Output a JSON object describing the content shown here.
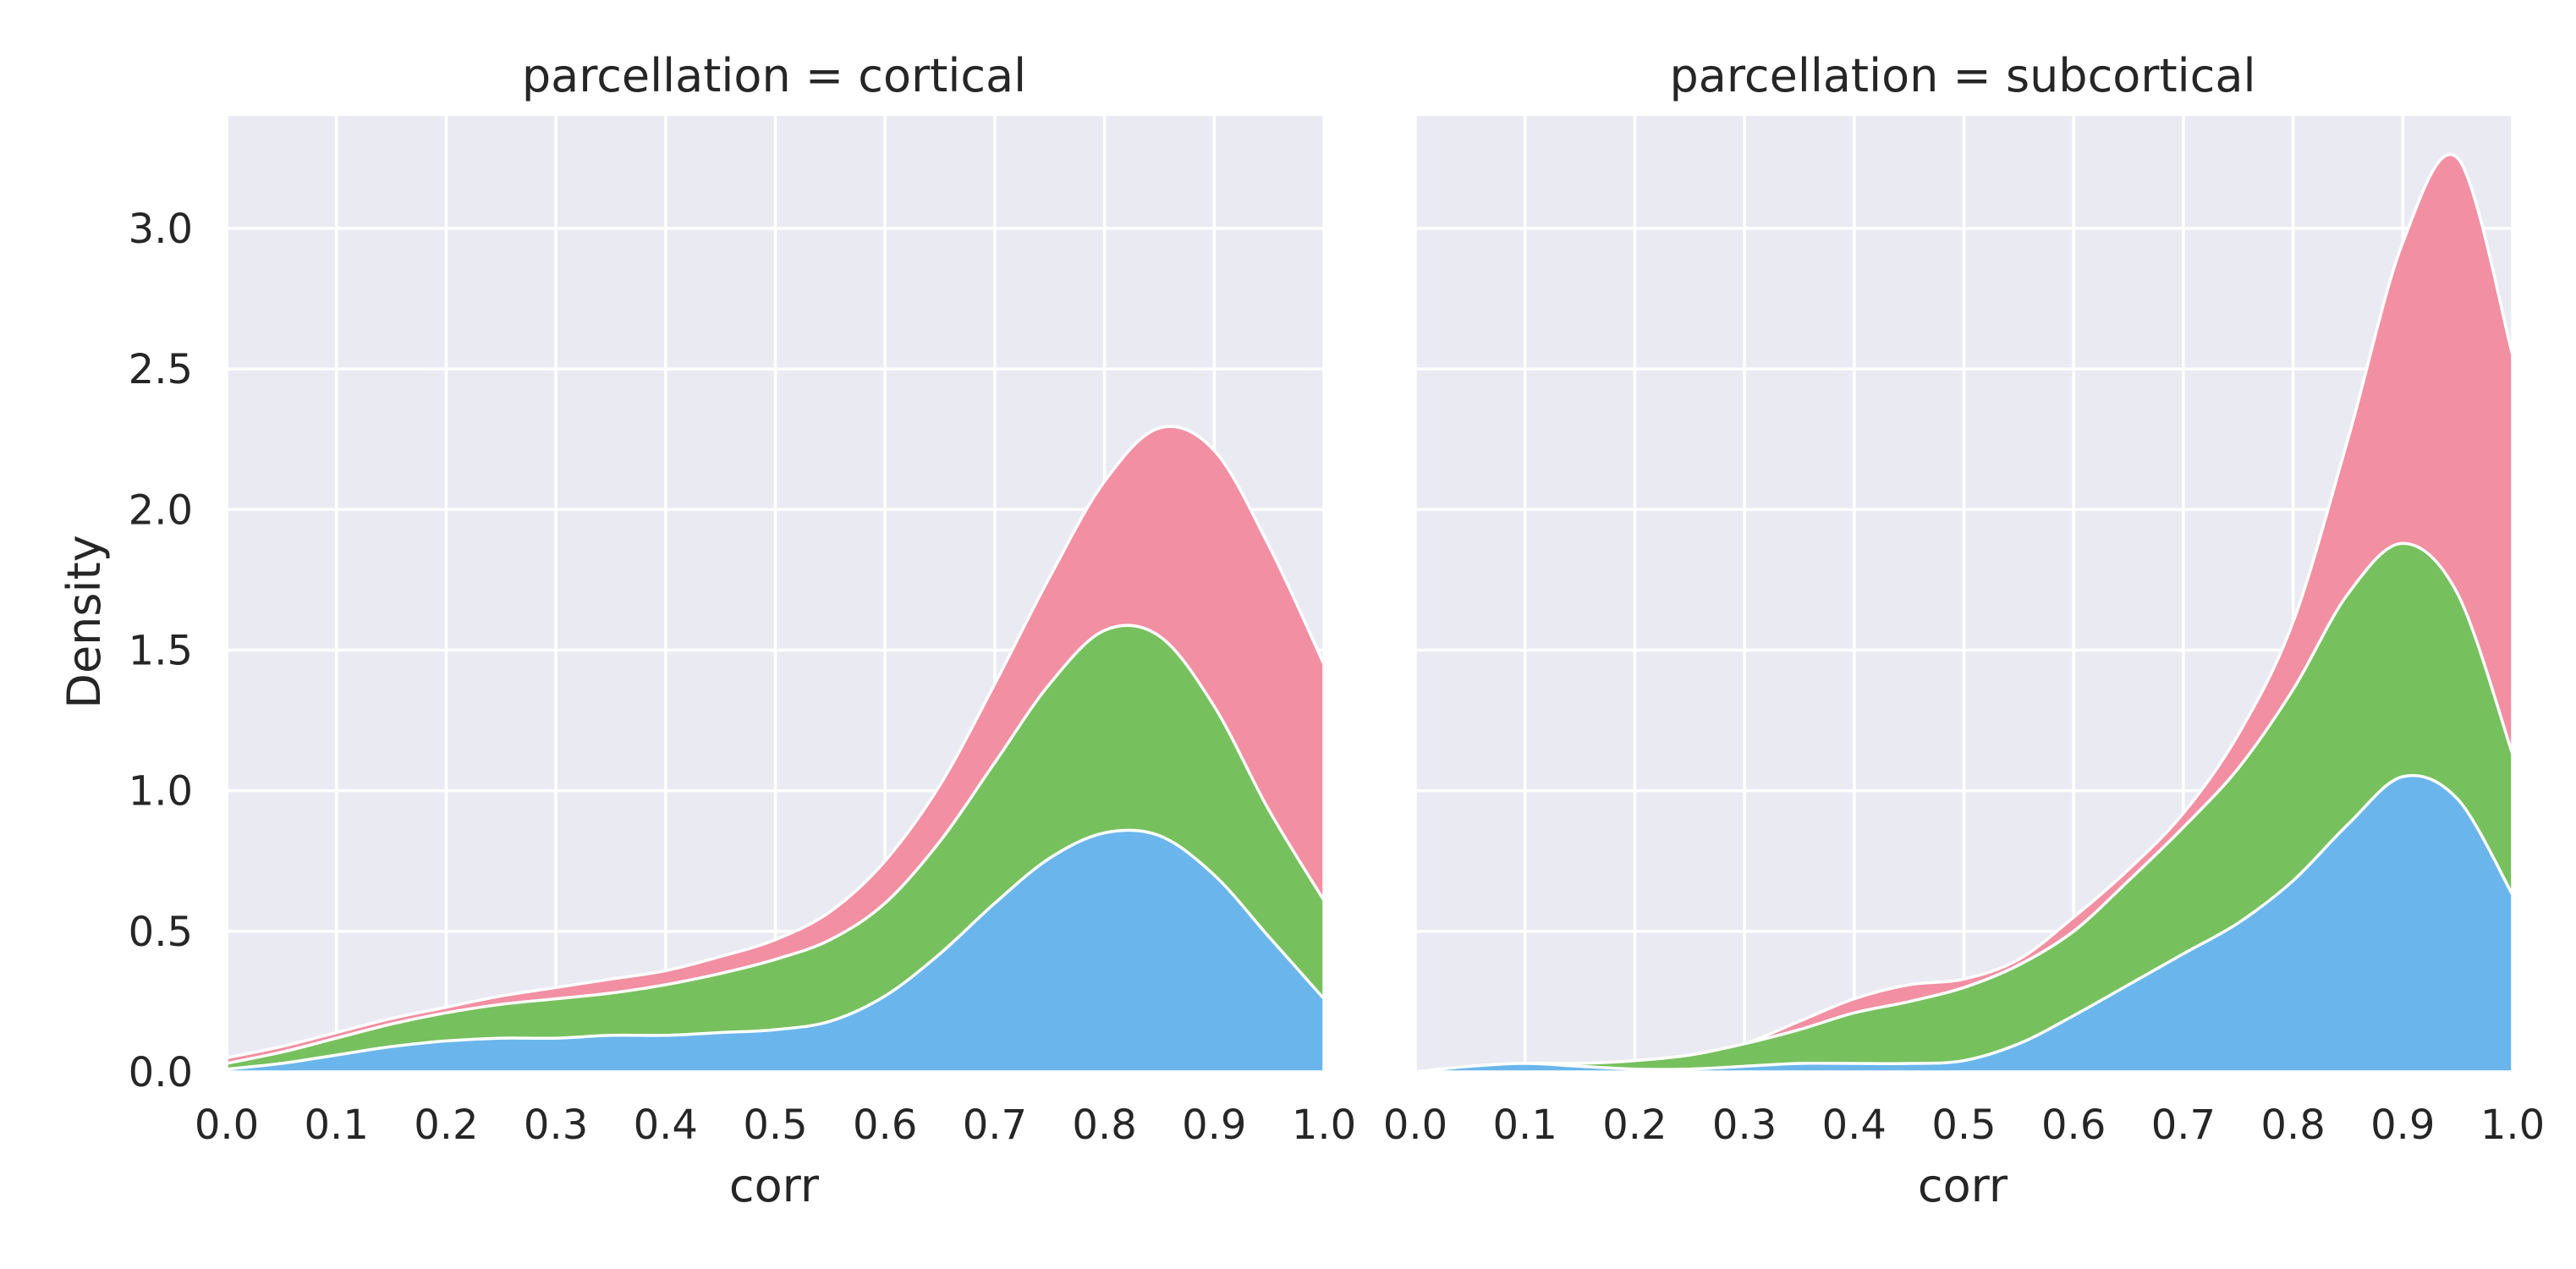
{
  "chart_data": {
    "type": "area",
    "stacked": true,
    "grid": true,
    "colors": {
      "panel_background": "#eaeaf2",
      "grid": "#ffffff",
      "series_bottom": "#6ab6ec",
      "series_middle": "#77c05e",
      "series_top": "#f28fa3"
    },
    "ylabel": "Density",
    "xlim": [
      0.0,
      1.0
    ],
    "ylim": [
      0.0,
      3.4
    ],
    "x_ticks": [
      "0.0",
      "0.1",
      "0.2",
      "0.3",
      "0.4",
      "0.5",
      "0.6",
      "0.7",
      "0.8",
      "0.9",
      "1.0"
    ],
    "y_ticks": [
      "0.0",
      "0.5",
      "1.0",
      "1.5",
      "2.0",
      "2.5",
      "3.0"
    ],
    "facets": [
      {
        "title": "parcellation = cortical",
        "xlabel": "corr",
        "x": [
          0.0,
          0.05,
          0.1,
          0.15,
          0.2,
          0.25,
          0.3,
          0.35,
          0.4,
          0.45,
          0.5,
          0.55,
          0.6,
          0.65,
          0.7,
          0.75,
          0.8,
          0.85,
          0.9,
          0.95,
          1.0
        ],
        "series": [
          {
            "color": "#6ab6ec",
            "cumulative": [
              0.01,
              0.03,
              0.06,
              0.09,
              0.11,
              0.12,
              0.12,
              0.13,
              0.13,
              0.14,
              0.15,
              0.18,
              0.27,
              0.42,
              0.6,
              0.76,
              0.85,
              0.84,
              0.7,
              0.48,
              0.26
            ]
          },
          {
            "color": "#77c05e",
            "cumulative": [
              0.03,
              0.07,
              0.12,
              0.17,
              0.21,
              0.24,
              0.26,
              0.28,
              0.31,
              0.35,
              0.4,
              0.47,
              0.6,
              0.82,
              1.1,
              1.38,
              1.57,
              1.55,
              1.3,
              0.93,
              0.61
            ]
          },
          {
            "color": "#f28fa3",
            "cumulative": [
              0.05,
              0.09,
              0.14,
              0.19,
              0.23,
              0.27,
              0.3,
              0.33,
              0.36,
              0.41,
              0.47,
              0.57,
              0.75,
              1.02,
              1.38,
              1.76,
              2.1,
              2.29,
              2.21,
              1.87,
              1.45
            ]
          }
        ]
      },
      {
        "title": "parcellation = subcortical",
        "xlabel": "corr",
        "x": [
          0.0,
          0.05,
          0.1,
          0.15,
          0.2,
          0.25,
          0.3,
          0.35,
          0.4,
          0.45,
          0.5,
          0.55,
          0.6,
          0.65,
          0.7,
          0.75,
          0.8,
          0.85,
          0.9,
          0.95,
          1.0
        ],
        "series": [
          {
            "color": "#6ab6ec",
            "cumulative": [
              0.0,
              0.02,
              0.03,
              0.02,
              0.01,
              0.01,
              0.02,
              0.03,
              0.03,
              0.03,
              0.04,
              0.1,
              0.2,
              0.31,
              0.42,
              0.53,
              0.68,
              0.88,
              1.05,
              0.97,
              0.63
            ]
          },
          {
            "color": "#77c05e",
            "cumulative": [
              0.0,
              0.02,
              0.03,
              0.03,
              0.04,
              0.06,
              0.1,
              0.15,
              0.21,
              0.25,
              0.3,
              0.38,
              0.5,
              0.68,
              0.87,
              1.08,
              1.36,
              1.7,
              1.88,
              1.7,
              1.13
            ]
          },
          {
            "color": "#f28fa3",
            "cumulative": [
              0.0,
              0.02,
              0.03,
              0.03,
              0.04,
              0.06,
              0.1,
              0.18,
              0.26,
              0.31,
              0.33,
              0.4,
              0.55,
              0.72,
              0.92,
              1.2,
              1.6,
              2.25,
              2.95,
              3.25,
              2.55
            ]
          }
        ]
      }
    ]
  }
}
